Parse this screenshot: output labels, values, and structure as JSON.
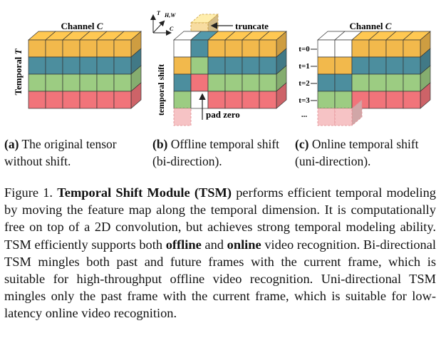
{
  "colors": {
    "row0": "#f2b94c",
    "row1": "#4c8e9e",
    "row2": "#9ccc82",
    "row3": "#f1747a",
    "pad": "#f6c3c5",
    "truncated": "#f7dca0",
    "empty": "#ffffff",
    "stroke": "#333333"
  },
  "panel_a": {
    "channel_label": "Channel ",
    "channel_var": "C",
    "temporal_label": "Temporal ",
    "temporal_var": "T"
  },
  "panel_b": {
    "axis_t": "T",
    "axis_hw": "H,W",
    "axis_c": "C",
    "truncate_label": "truncate",
    "shift_label": "temporal shift",
    "pad_label": "pad zero"
  },
  "panel_c": {
    "channel_label": "Channel ",
    "channel_var": "C",
    "time_labels": [
      "t=0",
      "t=1",
      "t=2",
      "t=3",
      "..."
    ]
  },
  "captions": {
    "a": {
      "tag": "(a)",
      "text": " The original tensor without shift."
    },
    "b": {
      "tag": "(b)",
      "text": " Offline temporal shift (bi-direction)."
    },
    "c": {
      "tag": "(c)",
      "text": " Online temporal shift (uni-direction)."
    }
  },
  "figure_caption": {
    "prefix": "Figure 1. ",
    "title": "Temporal Shift Module (TSM)",
    "part1": " performs efficient temporal modeling by moving the feature map along the temporal dimension. It is computationally free on top of a 2D convolution, but achieves strong temporal modeling ability. TSM efficiently supports both ",
    "offline": "offline",
    "part2": " and ",
    "online": "online",
    "part3": " video recognition. Bi-directional TSM mingles both past and future frames with the current frame, which is suitable for high-throughput offline video recognition. Uni-directional TSM mingles only the past frame with the current frame, which is suitable for low-latency online video recognition."
  }
}
